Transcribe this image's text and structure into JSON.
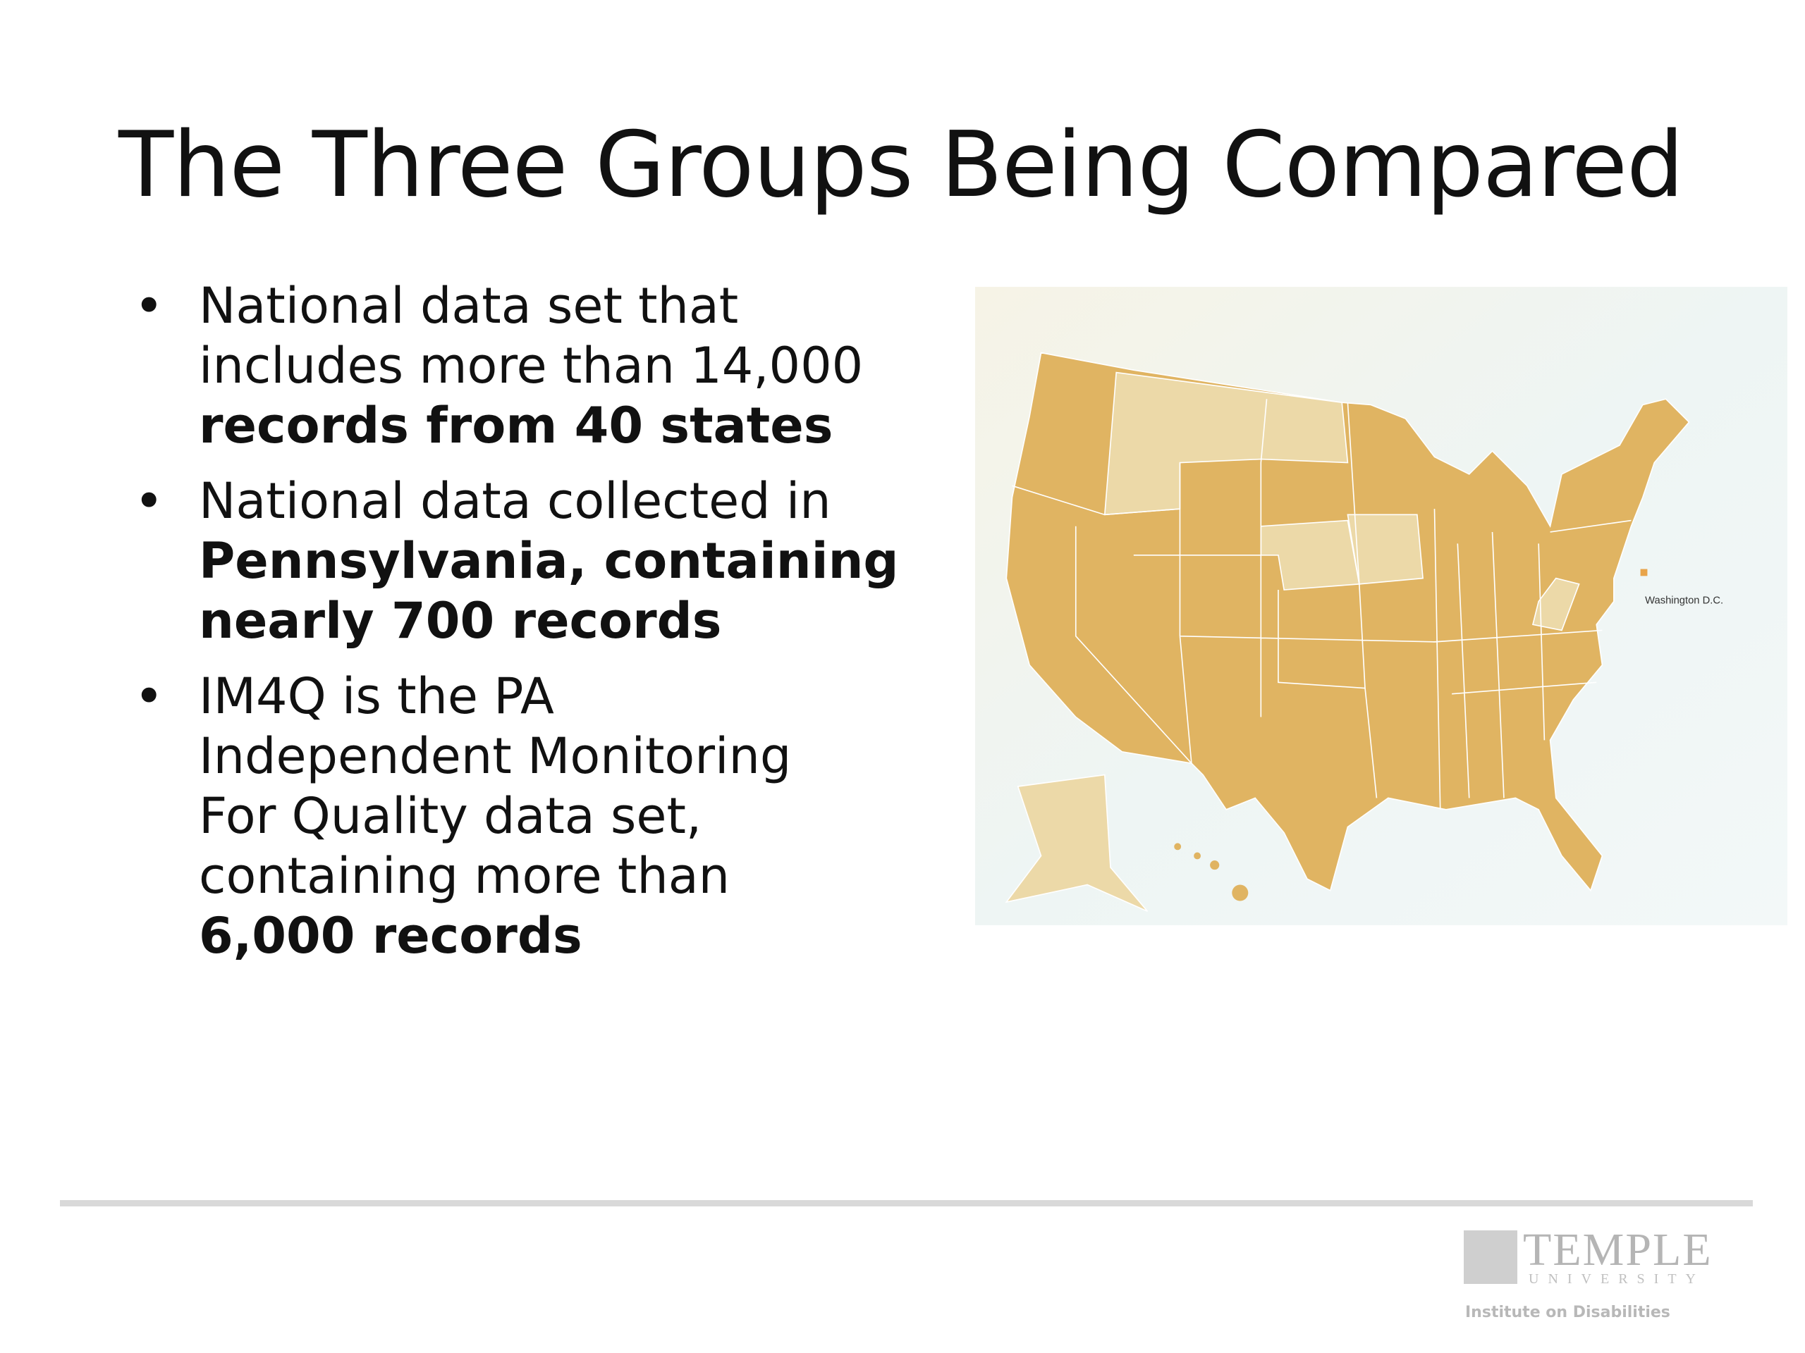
{
  "title": "The Three Groups Being Compared",
  "bullets": [
    {
      "lines": [
        {
          "text": "National data set that",
          "bold": false
        },
        {
          "text": "includes more than 14,000",
          "bold": false
        },
        {
          "text": "records from 40 states",
          "bold": true
        }
      ]
    },
    {
      "lines": [
        {
          "text": "National data collected in",
          "bold": false
        },
        {
          "text": "Pennsylvania, containing",
          "bold": true
        },
        {
          "text": "nearly 700 records",
          "bold": true
        }
      ]
    },
    {
      "lines": [
        {
          "text": "IM4Q is the PA",
          "bold": false
        },
        {
          "text": "Independent Monitoring",
          "bold": false
        },
        {
          "text": "For Quality data set,",
          "bold": false
        },
        {
          "text": "containing more than",
          "bold": false
        },
        {
          "text": "6,000 records",
          "bold": true
        }
      ]
    }
  ],
  "map": {
    "label": "Washington D.C."
  },
  "logo": {
    "name": "TEMPLE",
    "sub": "UNIVERSITY",
    "unit": "Institute on Disabilities"
  }
}
